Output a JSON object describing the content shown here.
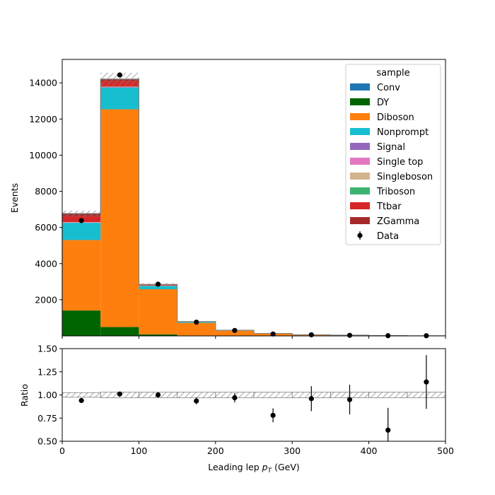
{
  "chart_data": {
    "type": "bar",
    "stacked": true,
    "x_edges": [
      0,
      50,
      100,
      150,
      200,
      250,
      300,
      350,
      400,
      450,
      500
    ],
    "xlabel": "Leading lep",
    "xlabel_pt": "p",
    "xlabel_sub": "T",
    "xlabel_unit": "(GeV)",
    "ylabel": "Events",
    "ylim": [
      0,
      15300
    ],
    "xlim": [
      0,
      500
    ],
    "x_ticks": [
      "0",
      "100",
      "200",
      "300",
      "400",
      "500"
    ],
    "x_tick_values": [
      0,
      100,
      200,
      300,
      400,
      500
    ],
    "y_ticks": [
      "2000",
      "4000",
      "6000",
      "8000",
      "10000",
      "12000",
      "14000"
    ],
    "y_tick_values": [
      2000,
      4000,
      6000,
      8000,
      10000,
      12000,
      14000
    ],
    "legend": {
      "title": "sample",
      "placement": "top-right"
    },
    "series": [
      {
        "name": "Conv",
        "color": "#1f77b4",
        "values": [
          5,
          10,
          3,
          1,
          0,
          0,
          0,
          0,
          0,
          0
        ]
      },
      {
        "name": "DY",
        "color": "#006400",
        "values": [
          1400,
          480,
          80,
          20,
          8,
          4,
          2,
          1,
          1,
          0
        ]
      },
      {
        "name": "Diboson",
        "color": "#ff7f0e",
        "values": [
          3900,
          12050,
          2500,
          700,
          280,
          120,
          55,
          30,
          15,
          8
        ]
      },
      {
        "name": "Nonprompt",
        "color": "#17becf",
        "values": [
          950,
          1200,
          180,
          50,
          18,
          7,
          3,
          1,
          1,
          0
        ]
      },
      {
        "name": "Signal",
        "color": "#9467bd",
        "values": [
          10,
          15,
          5,
          1,
          1,
          0,
          0,
          0,
          0,
          0
        ]
      },
      {
        "name": "Single top",
        "color": "#e377c2",
        "values": [
          20,
          20,
          5,
          2,
          1,
          0,
          0,
          0,
          0,
          0
        ]
      },
      {
        "name": "Singleboson",
        "color": "#d2b48c",
        "values": [
          10,
          5,
          2,
          1,
          0,
          0,
          0,
          0,
          0,
          0
        ]
      },
      {
        "name": "Triboson",
        "color": "#3cb371",
        "values": [
          5,
          20,
          10,
          5,
          3,
          2,
          1,
          8,
          0,
          0
        ]
      },
      {
        "name": "Ttbar",
        "color": "#d62728",
        "values": [
          320,
          310,
          50,
          10,
          3,
          1,
          1,
          0,
          0,
          0
        ]
      },
      {
        "name": "ZGamma",
        "color": "#a52a2a",
        "values": [
          150,
          100,
          15,
          5,
          1,
          0,
          0,
          0,
          0,
          0
        ]
      }
    ],
    "unc_band_rel": 0.025,
    "data": {
      "name": "Data",
      "x": [
        25,
        75,
        125,
        175,
        225,
        275,
        325,
        375,
        425,
        475
      ],
      "y": [
        6380,
        14440,
        2860,
        760,
        300,
        105,
        60,
        32,
        10,
        9
      ],
      "err": [
        80,
        120,
        53,
        28,
        17,
        10,
        8,
        6,
        3,
        3
      ]
    },
    "ratio": {
      "ylabel": "Ratio",
      "ylim": [
        0.5,
        1.5
      ],
      "y_ticks": [
        "0.50",
        "0.75",
        "1.00",
        "1.25",
        "1.50"
      ],
      "y_tick_values": [
        0.5,
        0.75,
        1.0,
        1.25,
        1.5
      ],
      "x": [
        25,
        75,
        125,
        175,
        225,
        275,
        325,
        375,
        425,
        475
      ],
      "y": [
        0.94,
        1.01,
        1.0,
        0.935,
        0.97,
        0.78,
        0.96,
        0.95,
        0.62,
        1.14
      ],
      "err": [
        0.015,
        0.01,
        0.02,
        0.035,
        0.05,
        0.075,
        0.135,
        0.16,
        0.24,
        0.29
      ],
      "band": [
        0.025,
        0.03,
        0.03,
        0.03,
        0.03,
        0.03,
        0.03,
        0.03,
        0.03,
        0.03
      ]
    }
  }
}
